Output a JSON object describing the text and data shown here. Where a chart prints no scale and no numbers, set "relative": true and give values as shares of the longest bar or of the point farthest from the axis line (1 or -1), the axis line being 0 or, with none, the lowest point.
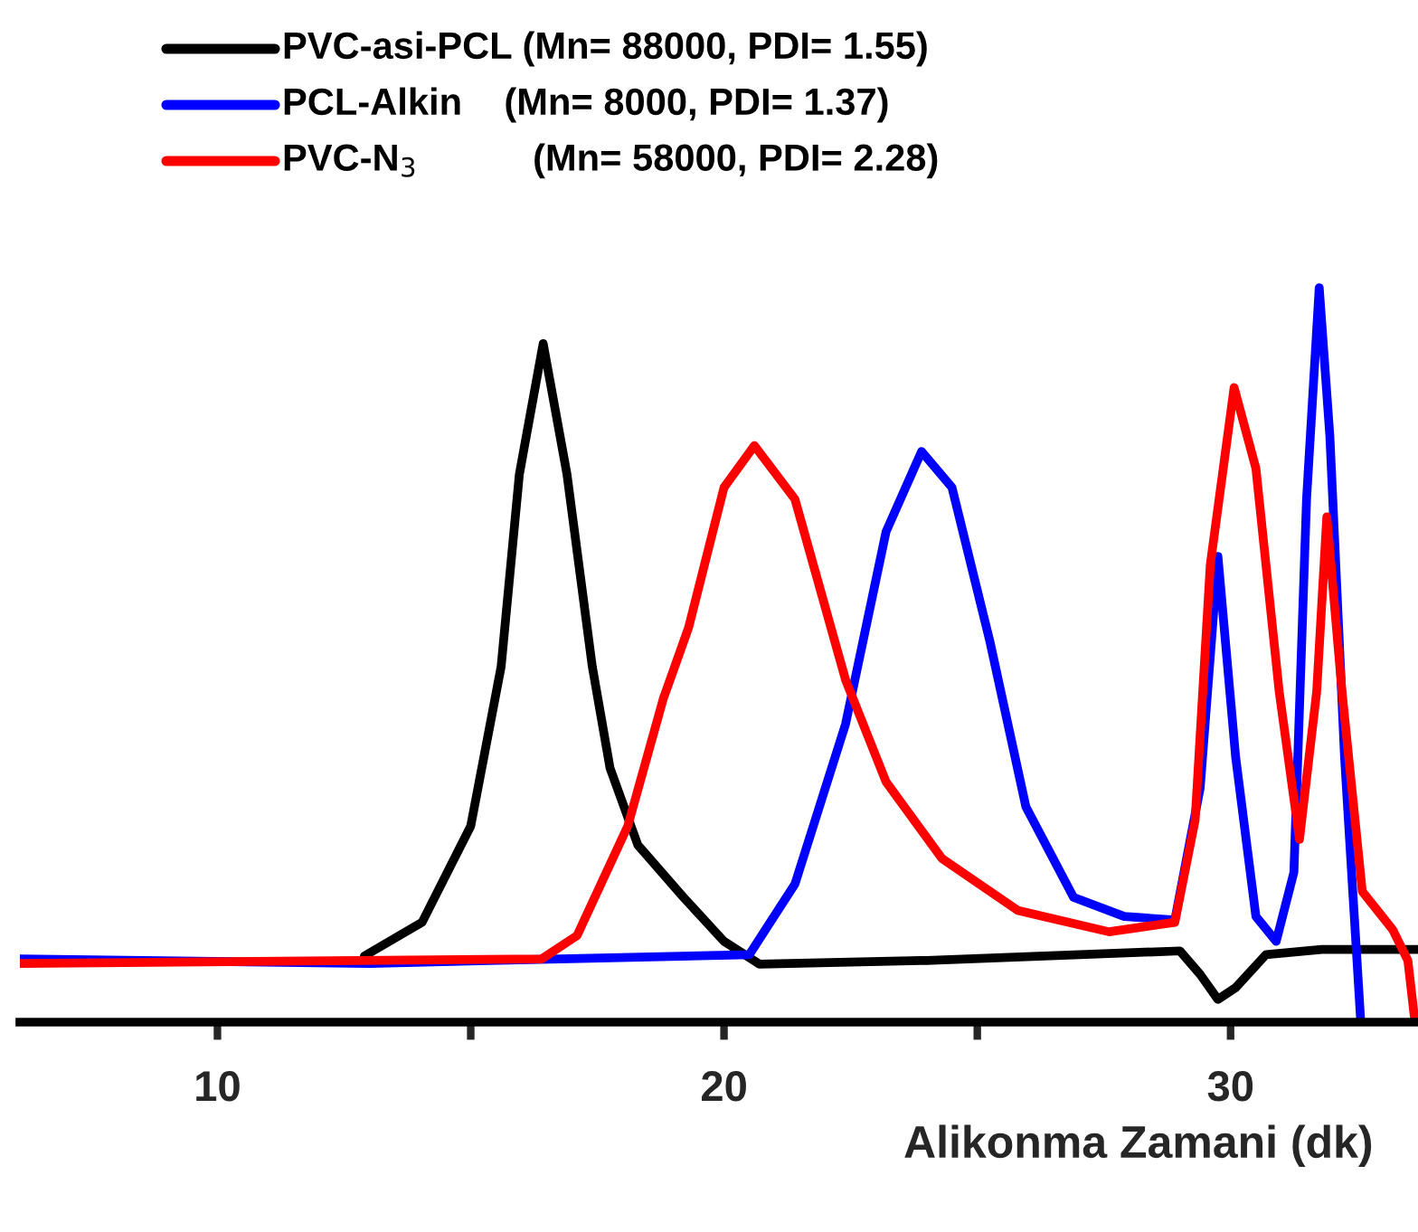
{
  "chart_data": {
    "type": "line",
    "relative": true,
    "xlabel": "Alikonma Zamani (dk)",
    "xlim": [
      6.1,
      33.7
    ],
    "xticks": [
      10,
      {
        "value": 15,
        "label": null
      },
      20,
      {
        "value": 25,
        "label": null
      },
      30
    ],
    "legend": "top left",
    "grid": false,
    "tick_labels": "x",
    "line_style": "solid",
    "series": [
      {
        "name": "PVC-asi-PCL (Mn= 88000, PDI= 1.55)",
        "color": "#000000",
        "x": [
          12.9,
          14.04,
          15.0,
          15.6,
          15.96,
          16.43,
          16.9,
          17.4,
          17.75,
          18.3,
          19.2,
          20.0,
          20.7,
          24.0,
          29.0,
          29.4,
          29.75,
          30.1,
          30.7,
          31.8,
          33.7
        ],
        "values": [
          0.09,
          0.136,
          0.267,
          0.484,
          0.746,
          0.924,
          0.746,
          0.484,
          0.346,
          0.241,
          0.17,
          0.11,
          0.079,
          0.084,
          0.097,
          0.065,
          0.031,
          0.047,
          0.092,
          0.099,
          0.099
        ]
      },
      {
        "name": "PCL-Alkin    (Mn= 8000, PDI= 1.37)",
        "color": "#0000ff",
        "x": [
          6.1,
          13.0,
          20.5,
          21.4,
          22.4,
          23.2,
          23.9,
          24.5,
          25.25,
          25.96,
          26.9,
          27.9,
          28.9,
          29.4,
          29.75,
          30.1,
          30.5,
          30.9,
          31.25,
          31.5,
          31.75,
          31.96,
          32.25,
          32.57
        ],
        "values": [
          0.086,
          0.08,
          0.092,
          0.188,
          0.406,
          0.668,
          0.777,
          0.728,
          0.518,
          0.293,
          0.17,
          0.144,
          0.139,
          0.319,
          0.634,
          0.361,
          0.144,
          0.11,
          0.204,
          0.712,
          1.0,
          0.798,
          0.361,
          0
        ]
      },
      {
        "name": "PVC-N$_{3}$           (Mn= 58000, PDI= 2.28)",
        "color": "#ff0000",
        "x": [
          6.1,
          16.4,
          17.1,
          18.1,
          18.8,
          19.3,
          20.0,
          20.6,
          21.4,
          22.4,
          23.2,
          24.3,
          25.8,
          27.6,
          28.9,
          29.3,
          29.6,
          30.07,
          30.5,
          30.96,
          31.36,
          31.7,
          31.9,
          32.2,
          32.6,
          33.2,
          33.5,
          33.64
        ],
        "values": [
          0.08,
          0.086,
          0.118,
          0.267,
          0.44,
          0.537,
          0.728,
          0.785,
          0.712,
          0.466,
          0.327,
          0.223,
          0.152,
          0.123,
          0.136,
          0.275,
          0.623,
          0.864,
          0.754,
          0.45,
          0.249,
          0.45,
          0.688,
          0.45,
          0.178,
          0.126,
          0.084,
          0
        ]
      }
    ]
  }
}
